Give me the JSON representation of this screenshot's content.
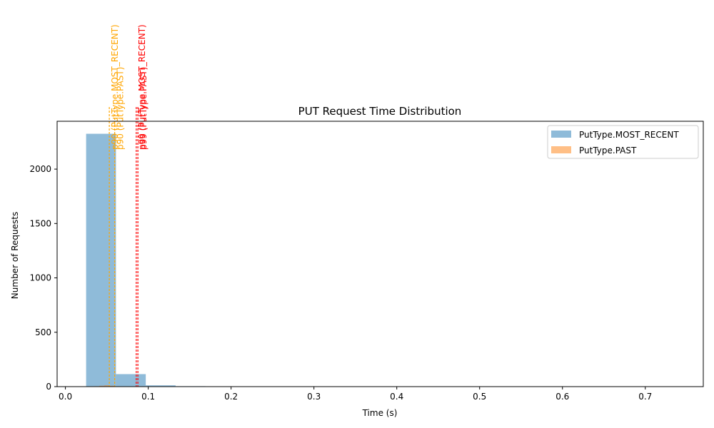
{
  "chart_data": {
    "type": "bar",
    "title": "PUT Request Time Distribution",
    "xlabel": "Time (s)",
    "ylabel": "Number of Requests",
    "xlim": [
      -0.01,
      0.77
    ],
    "ylim": [
      0,
      2440
    ],
    "x_ticks": [
      0.0,
      0.1,
      0.2,
      0.3,
      0.4,
      0.5,
      0.6,
      0.7
    ],
    "x_tick_labels": [
      "0.0",
      "0.1",
      "0.2",
      "0.3",
      "0.4",
      "0.5",
      "0.6",
      "0.7"
    ],
    "y_ticks": [
      0,
      500,
      1000,
      1500,
      2000
    ],
    "y_tick_labels": [
      "0",
      "500",
      "1000",
      "1500",
      "2000"
    ],
    "grid": false,
    "legend_position": "top-right",
    "series": [
      {
        "name": "PutType.MOST_RECENT",
        "color": "#1f77b4",
        "opacity": 0.5,
        "bins": [
          {
            "x0": 0.025,
            "x1": 0.061,
            "count": 2325
          },
          {
            "x0": 0.061,
            "x1": 0.097,
            "count": 115
          },
          {
            "x0": 0.097,
            "x1": 0.133,
            "count": 12
          },
          {
            "x0": 0.133,
            "x1": 0.169,
            "count": 4
          }
        ]
      },
      {
        "name": "PutType.PAST",
        "color": "#ff7f0e",
        "opacity": 0.5,
        "bins": [
          {
            "x0": 0.035,
            "x1": 0.041,
            "count": 4
          },
          {
            "x0": 0.041,
            "x1": 0.047,
            "count": 8
          },
          {
            "x0": 0.047,
            "x1": 0.053,
            "count": 12
          },
          {
            "x0": 0.053,
            "x1": 0.059,
            "count": 8
          },
          {
            "x0": 0.059,
            "x1": 0.065,
            "count": 3
          }
        ]
      }
    ],
    "reference_lines": [
      {
        "x": 0.053,
        "label": "p90 (PutType.MOST_RECENT)",
        "color": "#ffa500"
      },
      {
        "x": 0.0595,
        "label": "p90 (PutType.PAST)",
        "color": "#ffa500"
      },
      {
        "x": 0.0855,
        "label": "p99 (PutType.MOST_RECENT)",
        "color": "#ff0000"
      },
      {
        "x": 0.0875,
        "label": "p99 (PutType.PAST)",
        "color": "#ff0000"
      }
    ]
  }
}
